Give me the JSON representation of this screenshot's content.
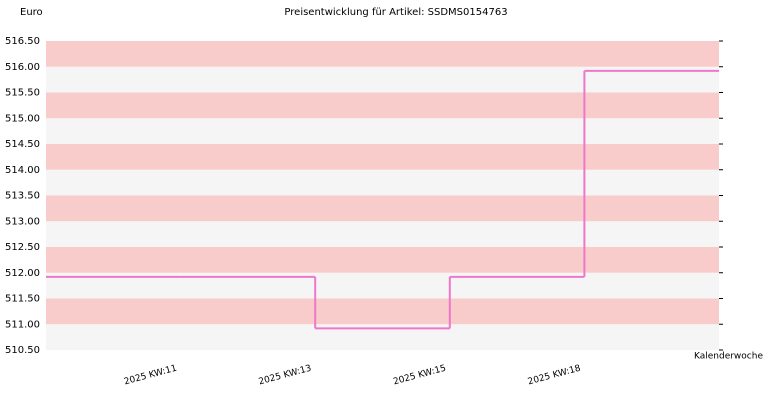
{
  "chart_data": {
    "type": "step",
    "title": "Preisentwicklung für Artikel: SSDMS0154763",
    "y_label": "Euro",
    "x_label": "Kalenderwoche",
    "categories": [
      null,
      "2025 KW:11",
      "2025 KW:13",
      "2025 KW:15",
      "2025 KW:18"
    ],
    "values": [
      511.92,
      511.92,
      510.92,
      511.92,
      515.92
    ],
    "color": "#ee77cc",
    "band_colors": [
      "#f9cccc",
      "#f5f5f5"
    ],
    "ylim": [
      510.5,
      516.5
    ],
    "yticks": [
      {
        "value": 510.5,
        "label": "510.50"
      },
      {
        "value": 511,
        "label": "511.00"
      },
      {
        "value": 511.5,
        "label": "511.50"
      },
      {
        "value": 512,
        "label": "512.00"
      },
      {
        "value": 512.5,
        "label": "512.50"
      },
      {
        "value": 513,
        "label": "513.00"
      },
      {
        "value": 513.5,
        "label": "513.50"
      },
      {
        "value": 514,
        "label": "514.00"
      },
      {
        "value": 514.5,
        "label": "514.50"
      },
      {
        "value": 515,
        "label": "515.00"
      },
      {
        "value": 515.5,
        "label": "515.50"
      },
      {
        "value": 516,
        "label": "516.00"
      },
      {
        "value": 516.5,
        "label": "516.50"
      }
    ]
  }
}
